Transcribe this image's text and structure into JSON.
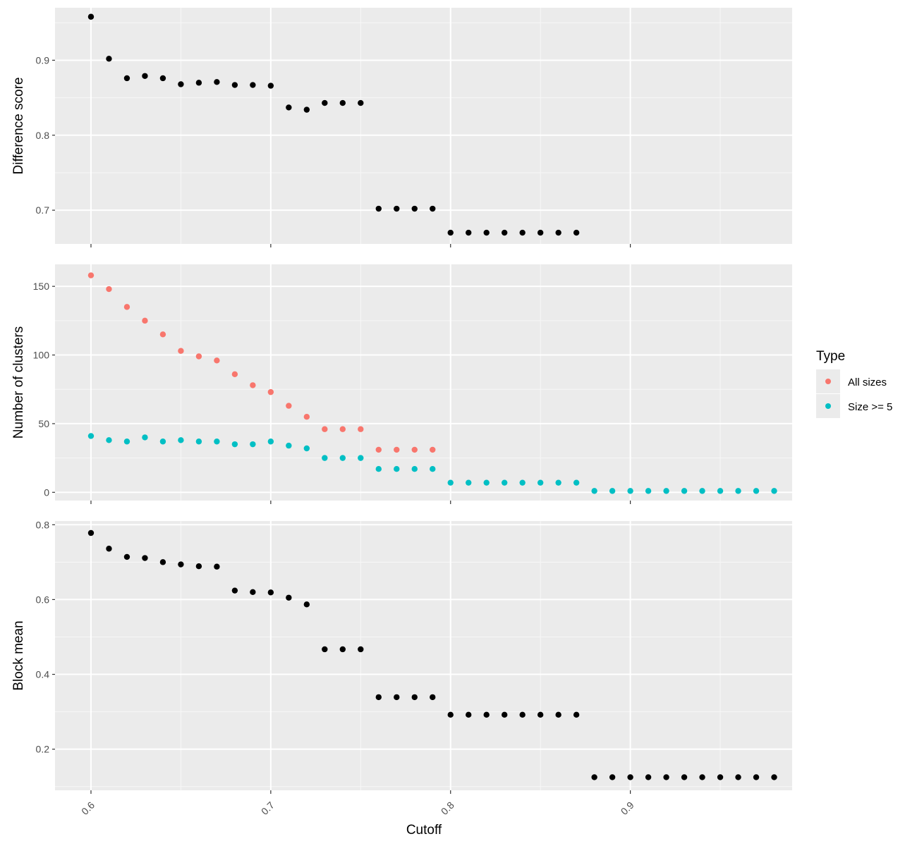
{
  "chart_data": {
    "type": "scatter",
    "xlabel": "Cutoff",
    "xlim": [
      0.58,
      0.99
    ],
    "x_ticks": [
      0.6,
      0.7,
      0.8,
      0.9
    ],
    "x_tick_labels": [
      "0.6",
      "0.7",
      "0.8",
      "0.9"
    ],
    "grid": true,
    "legend": {
      "title": "Type",
      "placement": "right",
      "entries": [
        {
          "label": "All sizes",
          "color": "#F8766D"
        },
        {
          "label": "Size >= 5",
          "color": "#00BFC4"
        }
      ]
    },
    "panels": [
      {
        "ylabel": "Difference score",
        "ylim": [
          0.655,
          0.97
        ],
        "y_ticks": [
          0.7,
          0.8,
          0.9
        ],
        "y_tick_labels": [
          "0.7",
          "0.8",
          "0.9"
        ],
        "series": [
          {
            "color": "#000000",
            "x": [
              0.6,
              0.61,
              0.62,
              0.63,
              0.64,
              0.65,
              0.66,
              0.67,
              0.68,
              0.69,
              0.7,
              0.71,
              0.72,
              0.73,
              0.74,
              0.75,
              0.76,
              0.77,
              0.78,
              0.79,
              0.8,
              0.81,
              0.82,
              0.83,
              0.84,
              0.85,
              0.86,
              0.87
            ],
            "y": [
              0.958,
              0.902,
              0.876,
              0.879,
              0.876,
              0.868,
              0.87,
              0.871,
              0.867,
              0.867,
              0.866,
              0.837,
              0.834,
              0.843,
              0.843,
              0.843,
              0.702,
              0.702,
              0.702,
              0.702,
              0.67,
              0.67,
              0.67,
              0.67,
              0.67,
              0.67,
              0.67,
              0.67
            ]
          }
        ]
      },
      {
        "ylabel": "Number of clusters",
        "ylim": [
          -6,
          166
        ],
        "y_ticks": [
          0,
          50,
          100,
          150
        ],
        "y_tick_labels": [
          "0",
          "50",
          "100",
          "150"
        ],
        "series": [
          {
            "name": "All sizes",
            "color": "#F8766D",
            "x": [
              0.6,
              0.61,
              0.62,
              0.63,
              0.64,
              0.65,
              0.66,
              0.67,
              0.68,
              0.69,
              0.7,
              0.71,
              0.72,
              0.73,
              0.74,
              0.75,
              0.76,
              0.77,
              0.78,
              0.79
            ],
            "y": [
              158,
              148,
              135,
              125,
              115,
              103,
              99,
              96,
              86,
              78,
              73,
              63,
              55,
              46,
              46,
              46,
              31,
              31,
              31,
              31
            ]
          },
          {
            "name": "Size >= 5",
            "color": "#00BFC4",
            "x": [
              0.6,
              0.61,
              0.62,
              0.63,
              0.64,
              0.65,
              0.66,
              0.67,
              0.68,
              0.69,
              0.7,
              0.71,
              0.72,
              0.73,
              0.74,
              0.75,
              0.76,
              0.77,
              0.78,
              0.79,
              0.8,
              0.81,
              0.82,
              0.83,
              0.84,
              0.85,
              0.86,
              0.87,
              0.88,
              0.89,
              0.9,
              0.91,
              0.92,
              0.93,
              0.94,
              0.95,
              0.96,
              0.97,
              0.98
            ],
            "y": [
              41,
              38,
              37,
              40,
              37,
              38,
              37,
              37,
              35,
              35,
              37,
              34,
              32,
              25,
              25,
              25,
              17,
              17,
              17,
              17,
              7,
              7,
              7,
              7,
              7,
              7,
              7,
              7,
              1,
              1,
              1,
              1,
              1,
              1,
              1,
              1,
              1,
              1,
              1
            ]
          }
        ]
      },
      {
        "ylabel": "Block mean",
        "ylim": [
          0.09,
          0.81
        ],
        "y_ticks": [
          0.2,
          0.4,
          0.6,
          0.8
        ],
        "y_tick_labels": [
          "0.2",
          "0.4",
          "0.6",
          "0.8"
        ],
        "series": [
          {
            "color": "#000000",
            "x": [
              0.6,
              0.61,
              0.62,
              0.63,
              0.64,
              0.65,
              0.66,
              0.67,
              0.68,
              0.69,
              0.7,
              0.71,
              0.72,
              0.73,
              0.74,
              0.75,
              0.76,
              0.77,
              0.78,
              0.79,
              0.8,
              0.81,
              0.82,
              0.83,
              0.84,
              0.85,
              0.86,
              0.87,
              0.88,
              0.89,
              0.9,
              0.91,
              0.92,
              0.93,
              0.94,
              0.95,
              0.96,
              0.97,
              0.98
            ],
            "y": [
              0.778,
              0.736,
              0.714,
              0.711,
              0.7,
              0.694,
              0.689,
              0.688,
              0.624,
              0.62,
              0.619,
              0.605,
              0.587,
              0.467,
              0.467,
              0.467,
              0.339,
              0.339,
              0.339,
              0.339,
              0.292,
              0.292,
              0.292,
              0.292,
              0.292,
              0.292,
              0.292,
              0.292,
              0.125,
              0.125,
              0.125,
              0.125,
              0.125,
              0.125,
              0.125,
              0.125,
              0.125,
              0.125,
              0.125
            ]
          }
        ]
      }
    ]
  }
}
